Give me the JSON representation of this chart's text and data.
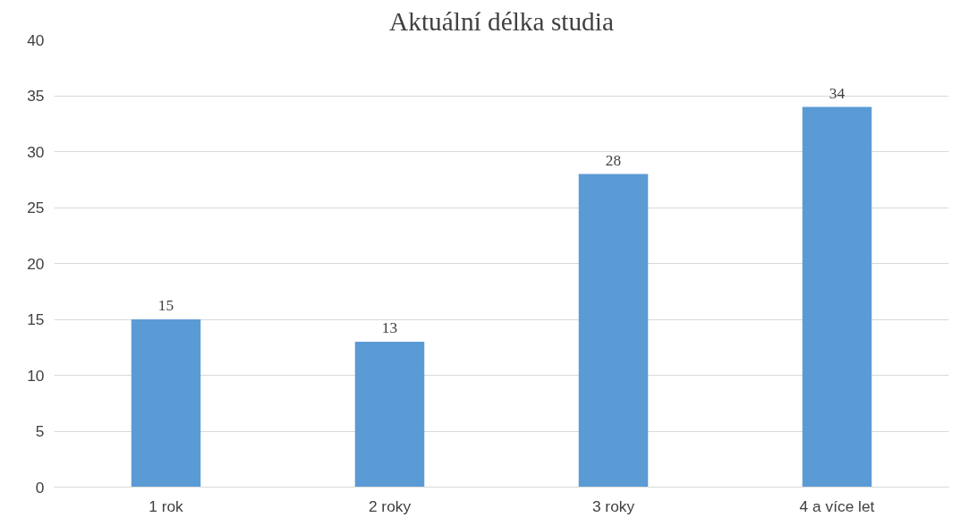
{
  "chart_data": {
    "type": "bar",
    "title": "Aktuální délka studia",
    "categories": [
      "1 rok",
      "2 roky",
      "3 roky",
      "4 a více let"
    ],
    "values": [
      15,
      13,
      28,
      34
    ],
    "color": "#5b9bd5",
    "ylim": [
      0,
      40
    ],
    "yticks": [
      0,
      5,
      10,
      15,
      20,
      25,
      30,
      35,
      40
    ],
    "grid": "y",
    "data_labels": true
  }
}
